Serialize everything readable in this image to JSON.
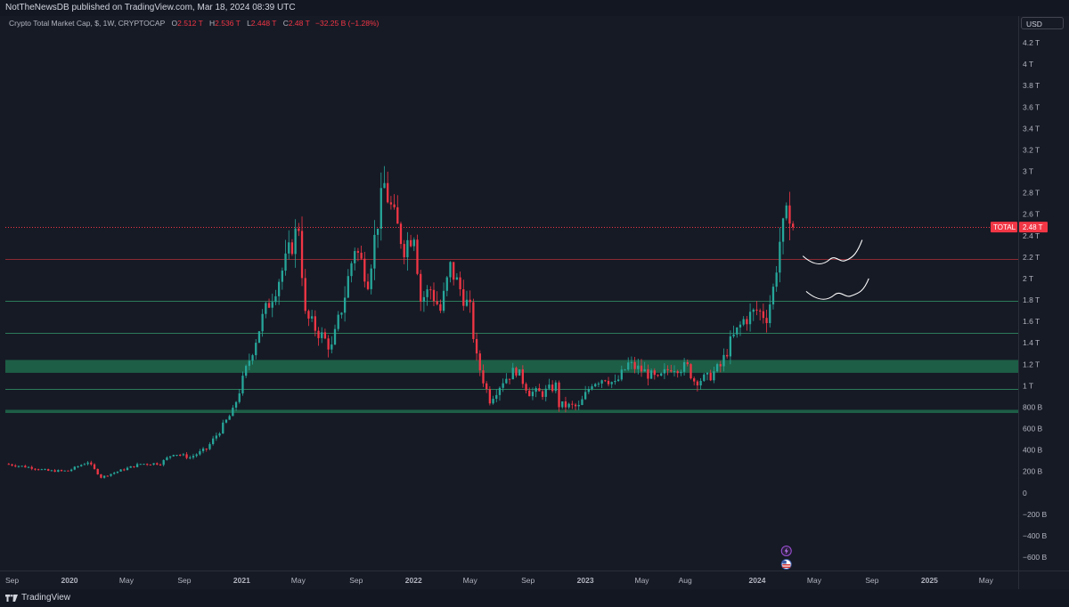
{
  "header": {
    "published": "NotTheNewsDB published on TradingView.com, Mar 18, 2024 08:39 UTC"
  },
  "legend": {
    "symbol": "Crypto Total Market Cap, $, 1W, CRYPTOCAP",
    "o_label": "O",
    "o_value": "2.512 T",
    "h_label": "H",
    "h_value": "2.536 T",
    "l_label": "L",
    "l_value": "2.448 T",
    "c_label": "C",
    "c_value": "2.48 T",
    "change": "−32.25 B (−1.28%)"
  },
  "price_scale": {
    "currency": "USD",
    "last_label": "TOTAL",
    "last_value": "2.48 T"
  },
  "footer": {
    "brand": "TradingView"
  },
  "colors": {
    "up": "#26a69a",
    "down": "#f23645",
    "zone": "#1e6b4c",
    "support_line": "#2c7a5a",
    "resistance_line": "#8b2b34",
    "annotation": "#ffffff"
  },
  "icons": [
    "lightning-icon",
    "us-flag-icon",
    "tradingview-logo-icon"
  ],
  "chart_data": {
    "type": "candlestick",
    "title": "Crypto Total Market Cap, $, 1W, CRYPTOCAP",
    "interval": "1W",
    "currency": "USD",
    "ylim": [
      -650,
      4300
    ],
    "y_ticks": [
      {
        "v": 4200,
        "label": "4.2 T"
      },
      {
        "v": 4000,
        "label": "4 T"
      },
      {
        "v": 3800,
        "label": "3.8 T"
      },
      {
        "v": 3600,
        "label": "3.6 T"
      },
      {
        "v": 3400,
        "label": "3.4 T"
      },
      {
        "v": 3200,
        "label": "3.2 T"
      },
      {
        "v": 3000,
        "label": "3 T"
      },
      {
        "v": 2800,
        "label": "2.8 T"
      },
      {
        "v": 2600,
        "label": "2.6 T"
      },
      {
        "v": 2400,
        "label": "2.4 T"
      },
      {
        "v": 2200,
        "label": "2.2 T"
      },
      {
        "v": 2000,
        "label": "2 T"
      },
      {
        "v": 1800,
        "label": "1.8 T"
      },
      {
        "v": 1600,
        "label": "1.6 T"
      },
      {
        "v": 1400,
        "label": "1.4 T"
      },
      {
        "v": 1200,
        "label": "1.2 T"
      },
      {
        "v": 1000,
        "label": "1 T"
      },
      {
        "v": 800,
        "label": "800 B"
      },
      {
        "v": 600,
        "label": "600 B"
      },
      {
        "v": 400,
        "label": "400 B"
      },
      {
        "v": 200,
        "label": "200 B"
      },
      {
        "v": 0,
        "label": "0"
      },
      {
        "v": -200,
        "label": "−200 B"
      },
      {
        "v": -400,
        "label": "−400 B"
      },
      {
        "v": -600,
        "label": "−600 B"
      }
    ],
    "x_ticks": [
      {
        "date": "2019-09-01",
        "label": "Sep",
        "year": false
      },
      {
        "date": "2020-01-01",
        "label": "2020",
        "year": true
      },
      {
        "date": "2020-05-01",
        "label": "May",
        "year": false
      },
      {
        "date": "2020-09-01",
        "label": "Sep",
        "year": false
      },
      {
        "date": "2021-01-01",
        "label": "2021",
        "year": true
      },
      {
        "date": "2021-05-01",
        "label": "May",
        "year": false
      },
      {
        "date": "2021-09-01",
        "label": "Sep",
        "year": false
      },
      {
        "date": "2022-01-01",
        "label": "2022",
        "year": true
      },
      {
        "date": "2022-05-01",
        "label": "May",
        "year": false
      },
      {
        "date": "2022-09-01",
        "label": "Sep",
        "year": false
      },
      {
        "date": "2023-01-01",
        "label": "2023",
        "year": true
      },
      {
        "date": "2023-05-01",
        "label": "May",
        "year": false
      },
      {
        "date": "2023-08-01",
        "label": "Aug",
        "year": false
      },
      {
        "date": "2024-01-01",
        "label": "2024",
        "year": true
      },
      {
        "date": "2024-05-01",
        "label": "May",
        "year": false
      },
      {
        "date": "2024-09-01",
        "label": "Sep",
        "year": false
      },
      {
        "date": "2025-01-01",
        "label": "2025",
        "year": true
      },
      {
        "date": "2025-05-01",
        "label": "May",
        "year": false
      }
    ],
    "horizontal_levels": [
      {
        "value": 2480,
        "kind": "last-price",
        "style": "dotted",
        "color": "#f23645"
      },
      {
        "value": 2180,
        "kind": "resistance",
        "style": "solid",
        "color": "#8b2b34"
      },
      {
        "value": 1790,
        "kind": "support",
        "style": "solid",
        "color": "#2c7a5a"
      },
      {
        "value": 1490,
        "kind": "support",
        "style": "solid",
        "color": "#2c7a5a"
      },
      {
        "value": 970,
        "kind": "support",
        "style": "solid",
        "color": "#2c7a5a"
      }
    ],
    "zones": [
      {
        "from": 1120,
        "to": 1240
      },
      {
        "from": 745,
        "to": 775
      }
    ],
    "keypoints": [
      [
        "2019-08-25",
        270
      ],
      [
        "2019-10-20",
        235
      ],
      [
        "2019-11-24",
        205
      ],
      [
        "2020-01-05",
        205
      ],
      [
        "2020-02-16",
        290
      ],
      [
        "2020-03-15",
        145
      ],
      [
        "2020-04-26",
        210
      ],
      [
        "2020-06-07",
        270
      ],
      [
        "2020-07-19",
        275
      ],
      [
        "2020-08-16",
        370
      ],
      [
        "2020-09-20",
        330
      ],
      [
        "2020-10-25",
        410
      ],
      [
        "2020-11-22",
        580
      ],
      [
        "2020-12-20",
        760
      ],
      [
        "2021-01-10",
        1050
      ],
      [
        "2021-02-21",
        1630
      ],
      [
        "2021-03-14",
        1850
      ],
      [
        "2021-04-11",
        2150
      ],
      [
        "2021-05-09",
        2500
      ],
      [
        "2021-05-23",
        1650
      ],
      [
        "2021-06-20",
        1500
      ],
      [
        "2021-07-18",
        1350
      ],
      [
        "2021-08-15",
        1850
      ],
      [
        "2021-09-05",
        2300
      ],
      [
        "2021-10-03",
        2000
      ],
      [
        "2021-10-24",
        2550
      ],
      [
        "2021-11-07",
        2870
      ],
      [
        "2021-11-28",
        2550
      ],
      [
        "2021-12-19",
        2300
      ],
      [
        "2022-01-09",
        2450
      ],
      [
        "2022-01-23",
        1800
      ],
      [
        "2022-02-13",
        1900
      ],
      [
        "2022-03-06",
        1700
      ],
      [
        "2022-03-27",
        2100
      ],
      [
        "2022-04-17",
        1900
      ],
      [
        "2022-05-08",
        1700
      ],
      [
        "2022-05-22",
        1250
      ],
      [
        "2022-06-12",
        960
      ],
      [
        "2022-06-19",
        870
      ],
      [
        "2022-07-17",
        1050
      ],
      [
        "2022-08-14",
        1150
      ],
      [
        "2022-09-11",
        940
      ],
      [
        "2022-10-09",
        930
      ],
      [
        "2022-11-06",
        1000
      ],
      [
        "2022-11-13",
        820
      ],
      [
        "2022-12-25",
        800
      ],
      [
        "2023-01-22",
        1030
      ],
      [
        "2023-02-19",
        1080
      ],
      [
        "2023-03-12",
        1010
      ],
      [
        "2023-04-09",
        1200
      ],
      [
        "2023-05-14",
        1130
      ],
      [
        "2023-06-11",
        1050
      ],
      [
        "2023-07-09",
        1180
      ],
      [
        "2023-08-13",
        1170
      ],
      [
        "2023-08-27",
        1050
      ],
      [
        "2023-09-24",
        1070
      ],
      [
        "2023-10-22",
        1180
      ],
      [
        "2023-11-12",
        1400
      ],
      [
        "2023-12-10",
        1610
      ],
      [
        "2024-01-07",
        1700
      ],
      [
        "2024-01-28",
        1650
      ],
      [
        "2024-02-11",
        1900
      ],
      [
        "2024-02-25",
        2350
      ],
      [
        "2024-03-10",
        2560
      ],
      [
        "2024-03-17",
        2480
      ]
    ],
    "last_candle": {
      "date": "2024-03-17",
      "open": 2512,
      "high": 2536,
      "low": 2448,
      "close": 2480
    },
    "annotations": [
      {
        "type": "hand-drawn-projection",
        "from_date": "2024-04-07",
        "to_date": "2024-08-11",
        "from_value": 2210,
        "to_value": 2360
      },
      {
        "type": "hand-drawn-projection",
        "from_date": "2024-04-14",
        "to_date": "2024-08-25",
        "from_value": 1880,
        "to_value": 2000
      }
    ]
  }
}
